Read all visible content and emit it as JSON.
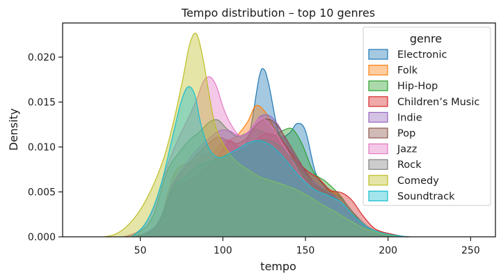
{
  "chart_data": {
    "type": "area",
    "title": "Tempo distribution – top 10 genres",
    "xlabel": "tempo",
    "ylabel": "Density",
    "xlim": [
      3,
      265
    ],
    "ylim": [
      0,
      0.0238
    ],
    "xticks": [
      50,
      100,
      150,
      200,
      250
    ],
    "xtick_labels": [
      "50",
      "100",
      "150",
      "200",
      "250"
    ],
    "yticks": [
      0,
      0.005,
      0.01,
      0.015,
      0.02
    ],
    "ytick_labels": [
      "0.000",
      "0.005",
      "0.010",
      "0.015",
      "0.020"
    ],
    "grid": false,
    "legend": {
      "title": "genre",
      "placement": "top-right"
    },
    "series": [
      {
        "name": "Electronic",
        "color": "#1f77b4",
        "points": [
          [
            50,
            0
          ],
          [
            60,
            0.0005
          ],
          [
            68,
            0.0017
          ],
          [
            75,
            0.0058
          ],
          [
            80,
            0.0062
          ],
          [
            88,
            0.0059
          ],
          [
            95,
            0.0068
          ],
          [
            102,
            0.009
          ],
          [
            110,
            0.0096
          ],
          [
            116,
            0.0114
          ],
          [
            122,
            0.0178
          ],
          [
            125,
            0.0186
          ],
          [
            128,
            0.0168
          ],
          [
            134,
            0.0115
          ],
          [
            140,
            0.0115
          ],
          [
            145,
            0.0126
          ],
          [
            150,
            0.0118
          ],
          [
            156,
            0.0072
          ],
          [
            162,
            0.0056
          ],
          [
            170,
            0.0041
          ],
          [
            178,
            0.0023
          ],
          [
            185,
            0.001
          ],
          [
            195,
            0.0004
          ],
          [
            205,
            0.0001
          ],
          [
            212,
            0
          ]
        ]
      },
      {
        "name": "Folk",
        "color": "#ff7f0e",
        "points": [
          [
            45,
            0
          ],
          [
            55,
            0.0005
          ],
          [
            62,
            0.0018
          ],
          [
            70,
            0.0068
          ],
          [
            76,
            0.008
          ],
          [
            82,
            0.0083
          ],
          [
            88,
            0.009
          ],
          [
            95,
            0.0095
          ],
          [
            100,
            0.0105
          ],
          [
            108,
            0.0112
          ],
          [
            115,
            0.0128
          ],
          [
            120,
            0.0146
          ],
          [
            126,
            0.0138
          ],
          [
            132,
            0.0118
          ],
          [
            140,
            0.0097
          ],
          [
            148,
            0.0073
          ],
          [
            155,
            0.0058
          ],
          [
            162,
            0.0053
          ],
          [
            170,
            0.0046
          ],
          [
            178,
            0.0027
          ],
          [
            186,
            0.0012
          ],
          [
            195,
            0.0005
          ],
          [
            205,
            0.0001
          ],
          [
            212,
            0
          ]
        ]
      },
      {
        "name": "Hip-Hop",
        "color": "#2ca02c",
        "points": [
          [
            40,
            0
          ],
          [
            50,
            0.0006
          ],
          [
            58,
            0.0024
          ],
          [
            66,
            0.0072
          ],
          [
            74,
            0.0095
          ],
          [
            80,
            0.0108
          ],
          [
            86,
            0.0117
          ],
          [
            92,
            0.0128
          ],
          [
            97,
            0.013
          ],
          [
            102,
            0.0121
          ],
          [
            108,
            0.0112
          ],
          [
            114,
            0.0115
          ],
          [
            118,
            0.012
          ],
          [
            124,
            0.0117
          ],
          [
            130,
            0.0112
          ],
          [
            136,
            0.0118
          ],
          [
            142,
            0.012
          ],
          [
            148,
            0.0103
          ],
          [
            155,
            0.0072
          ],
          [
            162,
            0.0062
          ],
          [
            170,
            0.0048
          ],
          [
            178,
            0.0029
          ],
          [
            186,
            0.0012
          ],
          [
            195,
            0.0005
          ],
          [
            205,
            0.0001
          ],
          [
            212,
            0
          ]
        ]
      },
      {
        "name": "Children’s Music",
        "color": "#d62728",
        "points": [
          [
            48,
            0
          ],
          [
            56,
            0.0006
          ],
          [
            63,
            0.0022
          ],
          [
            70,
            0.0052
          ],
          [
            78,
            0.006
          ],
          [
            86,
            0.007
          ],
          [
            92,
            0.008
          ],
          [
            98,
            0.0092
          ],
          [
            104,
            0.0107
          ],
          [
            108,
            0.0102
          ],
          [
            113,
            0.0097
          ],
          [
            118,
            0.0103
          ],
          [
            123,
            0.0112
          ],
          [
            128,
            0.0115
          ],
          [
            135,
            0.0109
          ],
          [
            142,
            0.0092
          ],
          [
            150,
            0.0075
          ],
          [
            158,
            0.0065
          ],
          [
            165,
            0.0052
          ],
          [
            172,
            0.0049
          ],
          [
            178,
            0.0041
          ],
          [
            185,
            0.0023
          ],
          [
            193,
            0.0008
          ],
          [
            205,
            0.0002
          ],
          [
            212,
            0
          ]
        ]
      },
      {
        "name": "Indie",
        "color": "#9467bd",
        "points": [
          [
            45,
            0
          ],
          [
            55,
            0.0006
          ],
          [
            62,
            0.002
          ],
          [
            70,
            0.006
          ],
          [
            78,
            0.0082
          ],
          [
            85,
            0.0098
          ],
          [
            92,
            0.011
          ],
          [
            98,
            0.0118
          ],
          [
            104,
            0.0118
          ],
          [
            110,
            0.0112
          ],
          [
            116,
            0.0117
          ],
          [
            122,
            0.0133
          ],
          [
            128,
            0.0135
          ],
          [
            134,
            0.0123
          ],
          [
            140,
            0.0101
          ],
          [
            148,
            0.0077
          ],
          [
            155,
            0.0061
          ],
          [
            162,
            0.0052
          ],
          [
            170,
            0.0041
          ],
          [
            178,
            0.0024
          ],
          [
            186,
            0.001
          ],
          [
            195,
            0.0004
          ],
          [
            205,
            0.0001
          ],
          [
            212,
            0
          ]
        ]
      },
      {
        "name": "Pop",
        "color": "#8c564b",
        "points": [
          [
            45,
            0
          ],
          [
            55,
            0.0005
          ],
          [
            62,
            0.0019
          ],
          [
            70,
            0.0058
          ],
          [
            78,
            0.0078
          ],
          [
            85,
            0.0093
          ],
          [
            92,
            0.0105
          ],
          [
            97,
            0.0111
          ],
          [
            102,
            0.0108
          ],
          [
            108,
            0.0104
          ],
          [
            114,
            0.0109
          ],
          [
            120,
            0.0124
          ],
          [
            126,
            0.0131
          ],
          [
            132,
            0.0126
          ],
          [
            140,
            0.0104
          ],
          [
            148,
            0.0079
          ],
          [
            155,
            0.006
          ],
          [
            162,
            0.005
          ],
          [
            170,
            0.0041
          ],
          [
            178,
            0.0025
          ],
          [
            186,
            0.0011
          ],
          [
            195,
            0.0004
          ],
          [
            205,
            0.0001
          ],
          [
            212,
            0
          ]
        ]
      },
      {
        "name": "Jazz",
        "color": "#e377c2",
        "points": [
          [
            40,
            0
          ],
          [
            50,
            0.0008
          ],
          [
            58,
            0.0032
          ],
          [
            65,
            0.0072
          ],
          [
            72,
            0.0105
          ],
          [
            78,
            0.0128
          ],
          [
            84,
            0.0152
          ],
          [
            88,
            0.0172
          ],
          [
            92,
            0.0178
          ],
          [
            96,
            0.0168
          ],
          [
            100,
            0.0145
          ],
          [
            104,
            0.0128
          ],
          [
            110,
            0.0113
          ],
          [
            116,
            0.0118
          ],
          [
            122,
            0.0132
          ],
          [
            128,
            0.0126
          ],
          [
            134,
            0.011
          ],
          [
            140,
            0.0092
          ],
          [
            148,
            0.0066
          ],
          [
            156,
            0.0052
          ],
          [
            164,
            0.0046
          ],
          [
            172,
            0.0037
          ],
          [
            180,
            0.0022
          ],
          [
            188,
            0.001
          ],
          [
            197,
            0.0004
          ],
          [
            207,
            0.0001
          ],
          [
            214,
            0
          ]
        ]
      },
      {
        "name": "Rock",
        "color": "#7f7f7f",
        "points": [
          [
            45,
            0
          ],
          [
            55,
            0.0005
          ],
          [
            62,
            0.0018
          ],
          [
            70,
            0.0055
          ],
          [
            78,
            0.0068
          ],
          [
            86,
            0.008
          ],
          [
            94,
            0.0085
          ],
          [
            100,
            0.009
          ],
          [
            106,
            0.0092
          ],
          [
            112,
            0.0097
          ],
          [
            118,
            0.0104
          ],
          [
            124,
            0.0108
          ],
          [
            130,
            0.0106
          ],
          [
            136,
            0.0099
          ],
          [
            142,
            0.0086
          ],
          [
            150,
            0.0068
          ],
          [
            158,
            0.0056
          ],
          [
            165,
            0.0049
          ],
          [
            172,
            0.0042
          ],
          [
            180,
            0.0025
          ],
          [
            188,
            0.0011
          ],
          [
            197,
            0.0004
          ],
          [
            207,
            0.0001
          ],
          [
            212,
            0
          ]
        ]
      },
      {
        "name": "Comedy",
        "color": "#bcbd22",
        "points": [
          [
            28,
            0
          ],
          [
            35,
            0.0003
          ],
          [
            42,
            0.0012
          ],
          [
            50,
            0.003
          ],
          [
            58,
            0.0058
          ],
          [
            65,
            0.0092
          ],
          [
            71,
            0.0135
          ],
          [
            76,
            0.0178
          ],
          [
            80,
            0.0215
          ],
          [
            84,
            0.0226
          ],
          [
            88,
            0.0198
          ],
          [
            92,
            0.0155
          ],
          [
            96,
            0.012
          ],
          [
            102,
            0.0098
          ],
          [
            108,
            0.0084
          ],
          [
            115,
            0.0075
          ],
          [
            122,
            0.0067
          ],
          [
            130,
            0.0062
          ],
          [
            138,
            0.0057
          ],
          [
            145,
            0.0052
          ],
          [
            152,
            0.0045
          ],
          [
            160,
            0.0036
          ],
          [
            168,
            0.0028
          ],
          [
            176,
            0.0019
          ],
          [
            185,
            0.001
          ],
          [
            195,
            0.0004
          ],
          [
            205,
            0.0001
          ],
          [
            212,
            0
          ]
        ]
      },
      {
        "name": "Soundtrack",
        "color": "#17becf",
        "points": [
          [
            45,
            0
          ],
          [
            52,
            0.0012
          ],
          [
            58,
            0.0033
          ],
          [
            64,
            0.0068
          ],
          [
            70,
            0.0115
          ],
          [
            75,
            0.0152
          ],
          [
            79,
            0.0167
          ],
          [
            83,
            0.0158
          ],
          [
            87,
            0.0123
          ],
          [
            92,
            0.0097
          ],
          [
            98,
            0.0088
          ],
          [
            104,
            0.0093
          ],
          [
            110,
            0.0099
          ],
          [
            116,
            0.0105
          ],
          [
            122,
            0.0107
          ],
          [
            128,
            0.0103
          ],
          [
            134,
            0.0094
          ],
          [
            140,
            0.0081
          ],
          [
            148,
            0.0064
          ],
          [
            156,
            0.0052
          ],
          [
            164,
            0.0046
          ],
          [
            172,
            0.0038
          ],
          [
            180,
            0.0022
          ],
          [
            188,
            0.001
          ],
          [
            197,
            0.0004
          ],
          [
            207,
            0.0001
          ],
          [
            213,
            0
          ]
        ]
      }
    ]
  }
}
